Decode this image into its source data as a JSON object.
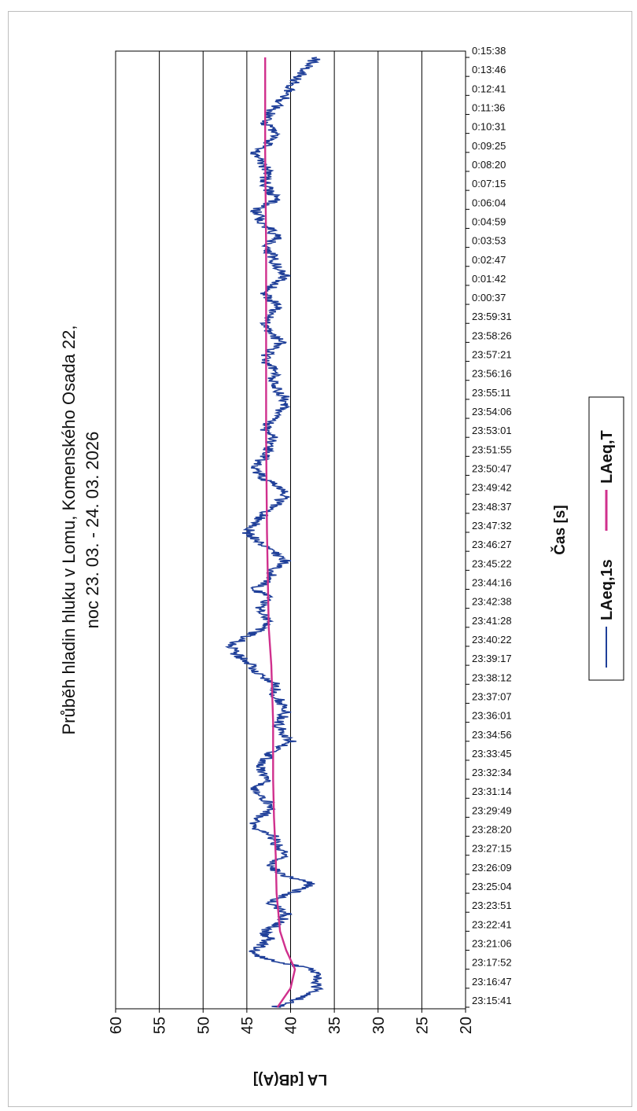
{
  "chart_data": {
    "type": "line",
    "title": "Průběh hladin hluku v Lomu, Komenského Osada 22,",
    "subtitle": "noc 23. 03. - 24. 03. 2026",
    "xlabel": "Čas [s]",
    "ylabel": "LA [dB(A)]",
    "ylim": [
      20,
      60
    ],
    "yticks": [
      20,
      25,
      30,
      35,
      40,
      45,
      50,
      55,
      60
    ],
    "grid": true,
    "legend_position": "bottom",
    "xticks": [
      "23:15:41",
      "23:16:47",
      "23:17:52",
      "23:21:06",
      "23:22:41",
      "23:23:51",
      "23:25:04",
      "23:26:09",
      "23:27:15",
      "23:28:20",
      "23:29:49",
      "23:31:14",
      "23:32:34",
      "23:33:45",
      "23:34:56",
      "23:36:01",
      "23:37:07",
      "23:38:12",
      "23:39:17",
      "23:40:22",
      "23:41:28",
      "23:42:38",
      "23:44:16",
      "23:45:22",
      "23:46:27",
      "23:47:32",
      "23:48:37",
      "23:49:42",
      "23:50:47",
      "23:51:55",
      "23:53:01",
      "23:54:06",
      "23:55:11",
      "23:56:16",
      "23:57:21",
      "23:58:26",
      "23:59:31",
      "0:00:37",
      "0:01:42",
      "0:02:47",
      "0:03:53",
      "0:04:59",
      "0:06:04",
      "0:07:15",
      "0:08:20",
      "0:09:25",
      "0:10:31",
      "0:11:36",
      "0:12:41",
      "0:13:46",
      "0:15:38"
    ],
    "series": [
      {
        "name": "LAeq,1s",
        "color": "#1f3f99",
        "points": [
          [
            0,
            41.8
          ],
          [
            0.5,
            38.5
          ],
          [
            1,
            37
          ],
          [
            1.5,
            36.8
          ],
          [
            2,
            37.5
          ],
          [
            2.4,
            42
          ],
          [
            2.8,
            44.5
          ],
          [
            3.2,
            43.5
          ],
          [
            3.6,
            42.5
          ],
          [
            4,
            43
          ],
          [
            4.5,
            41
          ],
          [
            5,
            40.5
          ],
          [
            5.5,
            42.5
          ],
          [
            6,
            40
          ],
          [
            6.5,
            37.5
          ],
          [
            7,
            41
          ],
          [
            7.5,
            42.5
          ],
          [
            8,
            40.5
          ],
          [
            8.5,
            41.5
          ],
          [
            9,
            42
          ],
          [
            9.5,
            44.5
          ],
          [
            10,
            43.5
          ],
          [
            10.5,
            42
          ],
          [
            11,
            43
          ],
          [
            11.5,
            44
          ],
          [
            12,
            42.5
          ],
          [
            12.5,
            43.5
          ],
          [
            13,
            43
          ],
          [
            13.5,
            42
          ],
          [
            14,
            40
          ],
          [
            14.5,
            41
          ],
          [
            15,
            41.5
          ],
          [
            15.5,
            40.5
          ],
          [
            16,
            41
          ],
          [
            16.5,
            42
          ],
          [
            17,
            41.5
          ],
          [
            17.5,
            43.5
          ],
          [
            18,
            44.5
          ],
          [
            18.5,
            46
          ],
          [
            19,
            47
          ],
          [
            19.5,
            45
          ],
          [
            20,
            43
          ],
          [
            20.5,
            42.5
          ],
          [
            21,
            43.5
          ],
          [
            21.5,
            42.5
          ],
          [
            22,
            44
          ],
          [
            22.5,
            42.5
          ],
          [
            23,
            42
          ],
          [
            23.5,
            40.5
          ],
          [
            24,
            42
          ],
          [
            24.5,
            43.5
          ],
          [
            25,
            45
          ],
          [
            25.5,
            44
          ],
          [
            26,
            43
          ],
          [
            26.5,
            41.5
          ],
          [
            27,
            40.5
          ],
          [
            27.5,
            42
          ],
          [
            28,
            43.5
          ],
          [
            28.5,
            44
          ],
          [
            29,
            43
          ],
          [
            29.5,
            42.5
          ],
          [
            30,
            42
          ],
          [
            30.5,
            43
          ],
          [
            31,
            42
          ],
          [
            31.5,
            41
          ],
          [
            32,
            40.5
          ],
          [
            32.5,
            41.5
          ],
          [
            33,
            42
          ],
          [
            33.5,
            41.5
          ],
          [
            34,
            43
          ],
          [
            34.5,
            42.5
          ],
          [
            35,
            41
          ],
          [
            35.5,
            42.5
          ],
          [
            36,
            43
          ],
          [
            36.5,
            42
          ],
          [
            37,
            41.5
          ],
          [
            37.5,
            43
          ],
          [
            38,
            42
          ],
          [
            38.5,
            40.5
          ],
          [
            39,
            41.5
          ],
          [
            39.5,
            42
          ],
          [
            40,
            43
          ],
          [
            40.5,
            41.5
          ],
          [
            41,
            42.5
          ],
          [
            41.5,
            43.5
          ],
          [
            42,
            44
          ],
          [
            42.5,
            41.5
          ],
          [
            43,
            42.5
          ],
          [
            43.5,
            43
          ],
          [
            44,
            42.5
          ],
          [
            44.5,
            43.5
          ],
          [
            45,
            44
          ],
          [
            45.5,
            42.5
          ],
          [
            46,
            41.5
          ],
          [
            46.5,
            43
          ],
          [
            47,
            42.5
          ],
          [
            47.5,
            41.5
          ],
          [
            48,
            40.5
          ],
          [
            48.5,
            40
          ],
          [
            49,
            39
          ],
          [
            49.5,
            38
          ],
          [
            50,
            37
          ]
        ]
      },
      {
        "name": "LAeq,T",
        "color": "#d0308d",
        "points": [
          [
            0,
            41.5
          ],
          [
            1,
            40
          ],
          [
            2,
            39.5
          ],
          [
            3,
            40.5
          ],
          [
            4,
            41.2
          ],
          [
            6,
            41.6
          ],
          [
            8,
            41.7
          ],
          [
            10,
            41.9
          ],
          [
            12,
            42
          ],
          [
            15,
            42
          ],
          [
            18,
            42.2
          ],
          [
            20,
            42.5
          ],
          [
            25,
            42.7
          ],
          [
            30,
            42.8
          ],
          [
            35,
            42.8
          ],
          [
            40,
            42.8
          ],
          [
            45,
            42.9
          ],
          [
            50,
            42.9
          ]
        ]
      }
    ]
  }
}
